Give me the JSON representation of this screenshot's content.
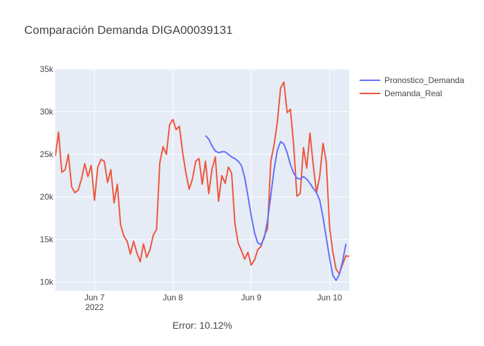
{
  "chart_data": {
    "type": "line",
    "title": "Comparación Demanda DIGA00039131",
    "xlabel": "",
    "ylabel": "",
    "x_range": [
      "2022-06-06 12:00",
      "2022-06-10 06:00"
    ],
    "ylim": [
      9000,
      35000
    ],
    "grid": true,
    "legend_position": "top-right",
    "x_ticks": [
      {
        "value": "2022-06-07 00:00",
        "label": "Jun 7",
        "sublabel": "2022"
      },
      {
        "value": "2022-06-08 00:00",
        "label": "Jun 8",
        "sublabel": ""
      },
      {
        "value": "2022-06-09 00:00",
        "label": "Jun 9",
        "sublabel": ""
      },
      {
        "value": "2022-06-10 00:00",
        "label": "Jun 10",
        "sublabel": ""
      }
    ],
    "y_ticks": [
      {
        "value": 10000,
        "label": "10k"
      },
      {
        "value": 15000,
        "label": "15k"
      },
      {
        "value": 20000,
        "label": "20k"
      },
      {
        "value": 25000,
        "label": "25k"
      },
      {
        "value": 30000,
        "label": "30k"
      },
      {
        "value": 35000,
        "label": "35k"
      }
    ],
    "series": [
      {
        "name": "Pronostico_Demanda",
        "color": "#636efa",
        "points": [
          [
            "2022-06-08 10:00",
            27200
          ],
          [
            "2022-06-08 11:00",
            26800
          ],
          [
            "2022-06-08 12:00",
            26000
          ],
          [
            "2022-06-08 13:00",
            25400
          ],
          [
            "2022-06-08 14:00",
            25200
          ],
          [
            "2022-06-08 15:00",
            25300
          ],
          [
            "2022-06-08 16:00",
            25300
          ],
          [
            "2022-06-08 17:00",
            25000
          ],
          [
            "2022-06-08 18:00",
            24700
          ],
          [
            "2022-06-08 19:00",
            24500
          ],
          [
            "2022-06-08 20:00",
            24200
          ],
          [
            "2022-06-08 21:00",
            23700
          ],
          [
            "2022-06-08 22:00",
            22300
          ],
          [
            "2022-06-08 23:00",
            20100
          ],
          [
            "2022-06-09 00:00",
            17800
          ],
          [
            "2022-06-09 01:00",
            15800
          ],
          [
            "2022-06-09 02:00",
            14600
          ],
          [
            "2022-06-09 03:00",
            14400
          ],
          [
            "2022-06-09 04:00",
            15200
          ],
          [
            "2022-06-09 05:00",
            17200
          ],
          [
            "2022-06-09 06:00",
            20200
          ],
          [
            "2022-06-09 07:00",
            23200
          ],
          [
            "2022-06-09 08:00",
            25500
          ],
          [
            "2022-06-09 09:00",
            26500
          ],
          [
            "2022-06-09 10:00",
            26200
          ],
          [
            "2022-06-09 11:00",
            25200
          ],
          [
            "2022-06-09 12:00",
            23800
          ],
          [
            "2022-06-09 13:00",
            22800
          ],
          [
            "2022-06-09 14:00",
            22200
          ],
          [
            "2022-06-09 15:00",
            22100
          ],
          [
            "2022-06-09 16:00",
            22400
          ],
          [
            "2022-06-09 17:00",
            22100
          ],
          [
            "2022-06-09 18:00",
            21600
          ],
          [
            "2022-06-09 19:00",
            21000
          ],
          [
            "2022-06-09 20:00",
            20500
          ],
          [
            "2022-06-09 21:00",
            19600
          ],
          [
            "2022-06-09 22:00",
            17600
          ],
          [
            "2022-06-09 23:00",
            15200
          ],
          [
            "2022-06-10 00:00",
            12800
          ],
          [
            "2022-06-10 01:00",
            10800
          ],
          [
            "2022-06-10 02:00",
            10200
          ],
          [
            "2022-06-10 03:00",
            10900
          ],
          [
            "2022-06-10 04:00",
            12500
          ],
          [
            "2022-06-10 05:00",
            14500
          ]
        ]
      },
      {
        "name": "Demanda_Real",
        "color": "#ef553b",
        "points": [
          [
            "2022-06-06 12:00",
            24800
          ],
          [
            "2022-06-06 13:00",
            27600
          ],
          [
            "2022-06-06 14:00",
            22900
          ],
          [
            "2022-06-06 15:00",
            23200
          ],
          [
            "2022-06-06 16:00",
            25000
          ],
          [
            "2022-06-06 17:00",
            21200
          ],
          [
            "2022-06-06 18:00",
            20500
          ],
          [
            "2022-06-06 19:00",
            20800
          ],
          [
            "2022-06-06 20:00",
            22100
          ],
          [
            "2022-06-06 21:00",
            23900
          ],
          [
            "2022-06-06 22:00",
            22400
          ],
          [
            "2022-06-06 23:00",
            23700
          ],
          [
            "2022-06-07 00:00",
            19600
          ],
          [
            "2022-06-07 01:00",
            23500
          ],
          [
            "2022-06-07 02:00",
            24400
          ],
          [
            "2022-06-07 03:00",
            24200
          ],
          [
            "2022-06-07 04:00",
            21700
          ],
          [
            "2022-06-07 05:00",
            23200
          ],
          [
            "2022-06-07 06:00",
            19300
          ],
          [
            "2022-06-07 07:00",
            21500
          ],
          [
            "2022-06-07 08:00",
            16700
          ],
          [
            "2022-06-07 09:00",
            15400
          ],
          [
            "2022-06-07 10:00",
            14800
          ],
          [
            "2022-06-07 11:00",
            13300
          ],
          [
            "2022-06-07 12:00",
            14800
          ],
          [
            "2022-06-07 13:00",
            13400
          ],
          [
            "2022-06-07 14:00",
            12400
          ],
          [
            "2022-06-07 15:00",
            14500
          ],
          [
            "2022-06-07 16:00",
            12900
          ],
          [
            "2022-06-07 17:00",
            13800
          ],
          [
            "2022-06-07 18:00",
            15500
          ],
          [
            "2022-06-07 19:00",
            16200
          ],
          [
            "2022-06-07 20:00",
            24000
          ],
          [
            "2022-06-07 21:00",
            25900
          ],
          [
            "2022-06-07 22:00",
            25000
          ],
          [
            "2022-06-07 23:00",
            28500
          ],
          [
            "2022-06-08 00:00",
            29100
          ],
          [
            "2022-06-08 01:00",
            27900
          ],
          [
            "2022-06-08 02:00",
            28300
          ],
          [
            "2022-06-08 03:00",
            25200
          ],
          [
            "2022-06-08 04:00",
            22800
          ],
          [
            "2022-06-08 05:00",
            20900
          ],
          [
            "2022-06-08 06:00",
            22100
          ],
          [
            "2022-06-08 07:00",
            24200
          ],
          [
            "2022-06-08 08:00",
            24500
          ],
          [
            "2022-06-08 09:00",
            21500
          ],
          [
            "2022-06-08 10:00",
            24200
          ],
          [
            "2022-06-08 11:00",
            20400
          ],
          [
            "2022-06-08 12:00",
            23300
          ],
          [
            "2022-06-08 13:00",
            24700
          ],
          [
            "2022-06-08 14:00",
            19500
          ],
          [
            "2022-06-08 15:00",
            22500
          ],
          [
            "2022-06-08 16:00",
            21600
          ],
          [
            "2022-06-08 17:00",
            23500
          ],
          [
            "2022-06-08 18:00",
            22800
          ],
          [
            "2022-06-08 19:00",
            16900
          ],
          [
            "2022-06-08 20:00",
            14600
          ],
          [
            "2022-06-08 21:00",
            13700
          ],
          [
            "2022-06-08 22:00",
            12700
          ],
          [
            "2022-06-08 23:00",
            13500
          ],
          [
            "2022-06-09 00:00",
            12000
          ],
          [
            "2022-06-09 01:00",
            12600
          ],
          [
            "2022-06-09 02:00",
            13800
          ],
          [
            "2022-06-09 03:00",
            14200
          ],
          [
            "2022-06-09 04:00",
            15400
          ],
          [
            "2022-06-09 05:00",
            16300
          ],
          [
            "2022-06-09 06:00",
            24200
          ],
          [
            "2022-06-09 07:00",
            26100
          ],
          [
            "2022-06-09 08:00",
            28800
          ],
          [
            "2022-06-09 09:00",
            32800
          ],
          [
            "2022-06-09 10:00",
            33500
          ],
          [
            "2022-06-09 11:00",
            29900
          ],
          [
            "2022-06-09 12:00",
            30300
          ],
          [
            "2022-06-09 13:00",
            26100
          ],
          [
            "2022-06-09 14:00",
            20100
          ],
          [
            "2022-06-09 15:00",
            20400
          ],
          [
            "2022-06-09 16:00",
            25800
          ],
          [
            "2022-06-09 17:00",
            23400
          ],
          [
            "2022-06-09 18:00",
            27500
          ],
          [
            "2022-06-09 19:00",
            23700
          ],
          [
            "2022-06-09 20:00",
            20500
          ],
          [
            "2022-06-09 21:00",
            22500
          ],
          [
            "2022-06-09 22:00",
            26300
          ],
          [
            "2022-06-09 23:00",
            24100
          ],
          [
            "2022-06-10 00:00",
            16400
          ],
          [
            "2022-06-10 01:00",
            13500
          ],
          [
            "2022-06-10 02:00",
            11500
          ],
          [
            "2022-06-10 03:00",
            11000
          ],
          [
            "2022-06-10 04:00",
            12100
          ],
          [
            "2022-06-10 05:00",
            13100
          ],
          [
            "2022-06-10 06:00",
            13000
          ]
        ]
      }
    ]
  },
  "footer": {
    "error_text": "Error: 10.12%"
  }
}
